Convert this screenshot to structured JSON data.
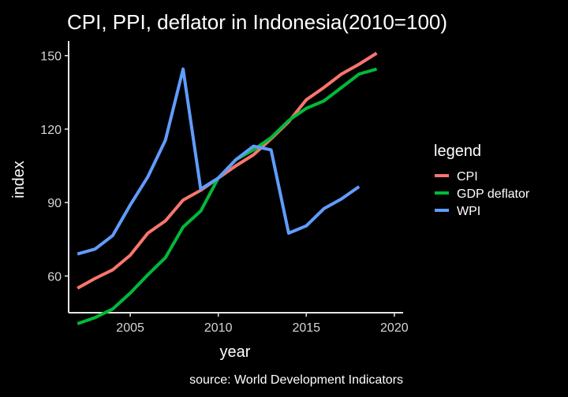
{
  "chart_data": {
    "type": "line",
    "title": "CPI, PPI, deflator in Indonesia(2010=100)",
    "xlabel": "year",
    "ylabel": "index",
    "caption": "source: World Development Indicators",
    "legend_title": "legend",
    "legend_position": "right",
    "grid": false,
    "xlim": [
      2001.5,
      2020.5
    ],
    "ylim": [
      45,
      156
    ],
    "x_ticks": [
      2005,
      2010,
      2015,
      2020
    ],
    "y_ticks": [
      60,
      90,
      120,
      150
    ],
    "series": [
      {
        "name": "CPI",
        "color": "#F8766D",
        "x": [
          2002,
          2003,
          2004,
          2005,
          2006,
          2007,
          2008,
          2009,
          2010,
          2011,
          2012,
          2013,
          2014,
          2015,
          2016,
          2017,
          2018,
          2019
        ],
        "values": [
          55,
          59,
          62.5,
          68.5,
          77.5,
          82.5,
          91,
          95,
          100,
          105,
          109.5,
          116,
          123,
          132,
          137,
          142.5,
          146.5,
          151
        ]
      },
      {
        "name": "GDP deflator",
        "color": "#00BA38",
        "x": [
          2002,
          2003,
          2004,
          2005,
          2006,
          2007,
          2008,
          2009,
          2010,
          2011,
          2012,
          2013,
          2014,
          2015,
          2016,
          2017,
          2018,
          2019
        ],
        "values": [
          40.5,
          43,
          46.5,
          53,
          60.5,
          67.5,
          80,
          86.5,
          100,
          107.5,
          111.5,
          116.5,
          123.5,
          128.5,
          131.5,
          137,
          142.5,
          144.5
        ]
      },
      {
        "name": "WPI",
        "color": "#619CFF",
        "x": [
          2002,
          2003,
          2004,
          2005,
          2006,
          2007,
          2008,
          2009,
          2010,
          2011,
          2012,
          2013,
          2014,
          2015,
          2016,
          2017,
          2018
        ],
        "values": [
          69,
          71,
          76.5,
          89,
          100.5,
          115.5,
          144.5,
          95.5,
          100,
          107.5,
          113,
          111.5,
          77.5,
          80.5,
          87.5,
          91.5,
          96.5
        ]
      }
    ]
  }
}
